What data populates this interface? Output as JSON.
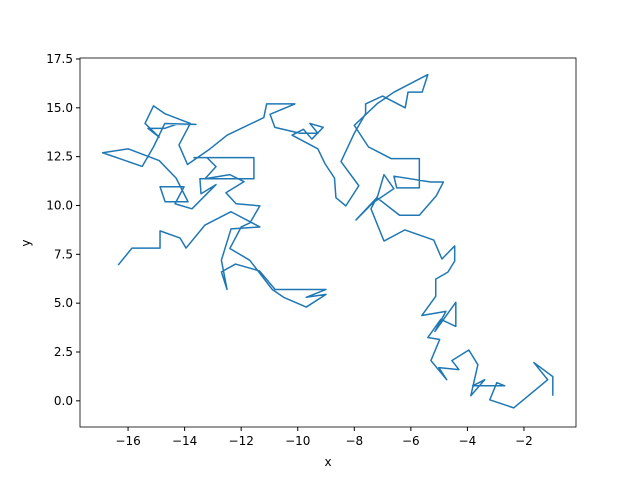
{
  "chart_data": {
    "type": "line",
    "x_label": "x",
    "y_label": "y",
    "xlim": [
      -17.7,
      -0.16
    ],
    "ylim": [
      -1.34,
      17.55
    ],
    "xticks": [
      {
        "value": -16,
        "label": "−16"
      },
      {
        "value": -14,
        "label": "−14"
      },
      {
        "value": -12,
        "label": "−12"
      },
      {
        "value": -10,
        "label": "−10"
      },
      {
        "value": -8,
        "label": "−8"
      },
      {
        "value": -6,
        "label": "−6"
      },
      {
        "value": -4,
        "label": "−4"
      },
      {
        "value": -2,
        "label": "−2"
      }
    ],
    "yticks": [
      {
        "value": 0,
        "label": "0.0"
      },
      2.5,
      {
        "value": 5,
        "label": "5.0"
      },
      7.5,
      {
        "value": 10,
        "label": "10.0"
      },
      12.5,
      {
        "value": 15,
        "label": "15.0"
      },
      17.5
    ],
    "series": [
      {
        "color": "#1f77b4",
        "x": [
          -16.35,
          -15.86,
          -14.87,
          -14.87,
          -14.16,
          -13.95,
          -13.28,
          -12.36,
          -11.34,
          -12.36,
          -12.7,
          -12.5,
          -12.7,
          -12.2,
          -11.35,
          -10.8,
          -9.0,
          -9.7,
          -9.0,
          -9.7,
          -10.5,
          -10.9,
          -11.7,
          -12.4,
          -12.0,
          -11.69,
          -11.34,
          -12.18,
          -12.54,
          -11.9,
          -12.4,
          -13.28,
          -12.89,
          -13.21,
          -13.67,
          -11.55,
          -11.55,
          -13.46,
          -13.42,
          -12.89,
          -13.74,
          -14.34,
          -14.02,
          -14.87,
          -14.69,
          -13.88,
          -14.3,
          -14.9,
          -16.0,
          -16.9,
          -15.5,
          -15.1,
          -14.7,
          -13.6,
          -14.3,
          -14.7,
          -15.3,
          -14.9,
          -15.4,
          -15.1,
          -14.7,
          -13.8,
          -14.2,
          -13.9,
          -13.1,
          -12.5,
          -11.2,
          -11.1,
          -10.1,
          -10.98,
          -10.81,
          -9.92,
          -9.29,
          -9.57,
          -9.1,
          -9.5,
          -9.8,
          -10.2,
          -9.29,
          -9.04,
          -8.7,
          -8.65,
          -8.3,
          -7.84,
          -8.47,
          -8.0,
          -7.6,
          -7.6,
          -7.0,
          -6.2,
          -6.1,
          -5.6,
          -5.4,
          -6.6,
          -7.2,
          -8.0,
          -7.5,
          -6.7,
          -5.7,
          -5.7,
          -6.5,
          -6.6,
          -5.3,
          -4.85,
          -5.1,
          -5.7,
          -6.4,
          -7.2,
          -7.94,
          -7.34,
          -6.6,
          -6.95,
          -7.17,
          -7.41,
          -6.95,
          -6.21,
          -5.19,
          -4.9,
          -4.45,
          -4.45,
          -4.69,
          -5.12,
          -5.12,
          -5.61,
          -4.76,
          -5.15,
          -4.41,
          -4.41,
          -4.94,
          -5.4,
          -4.98,
          -5.29,
          -4.73,
          -5.01,
          -4.3,
          -4.55,
          -3.95,
          -3.63,
          -3.88,
          -3.39,
          -3.81,
          -2.68,
          -2.96,
          -3.21,
          -2.36,
          -1.16,
          -1.65,
          -0.98,
          -0.98
        ],
        "values": [
          6.95,
          7.82,
          7.82,
          8.7,
          8.33,
          7.82,
          9.0,
          9.68,
          8.9,
          8.8,
          7.2,
          5.7,
          6.6,
          7.0,
          6.65,
          5.7,
          5.7,
          5.3,
          5.45,
          4.8,
          5.3,
          5.7,
          7.2,
          7.8,
          8.9,
          9.11,
          9.98,
          10.09,
          10.65,
          11.22,
          11.58,
          11.37,
          11.99,
          12.45,
          12.45,
          12.45,
          11.37,
          11.37,
          10.6,
          11.07,
          9.83,
          10.09,
          10.96,
          10.96,
          10.19,
          10.19,
          11.4,
          12.3,
          12.9,
          12.7,
          12.0,
          13.0,
          14.2,
          14.15,
          14.15,
          13.95,
          13.95,
          13.5,
          14.2,
          15.1,
          14.7,
          14.2,
          13.1,
          12.1,
          12.9,
          13.6,
          14.5,
          15.2,
          15.2,
          14.67,
          14.0,
          13.7,
          13.7,
          14.2,
          14.0,
          13.4,
          13.9,
          13.6,
          12.9,
          12.15,
          11.4,
          10.4,
          9.98,
          11.01,
          12.25,
          13.7,
          14.7,
          15.2,
          15.6,
          15.0,
          15.8,
          15.8,
          16.7,
          15.8,
          15.2,
          14.1,
          13.0,
          12.4,
          12.4,
          10.9,
          10.9,
          11.5,
          11.2,
          11.2,
          10.5,
          9.5,
          9.5,
          10.4,
          9.26,
          10.14,
          10.86,
          11.58,
          10.5,
          9.83,
          8.18,
          8.75,
          8.23,
          7.26,
          7.93,
          7.15,
          6.59,
          6.23,
          5.35,
          4.37,
          4.58,
          3.55,
          5.04,
          3.81,
          4.17,
          3.24,
          3.14,
          2.06,
          1.08,
          1.7,
          1.6,
          2.06,
          2.6,
          1.85,
          0.26,
          1.08,
          0.77,
          0.77,
          0.93,
          0.05,
          -0.36,
          1.08,
          1.96,
          1.24,
          0.26
        ]
      }
    ]
  }
}
